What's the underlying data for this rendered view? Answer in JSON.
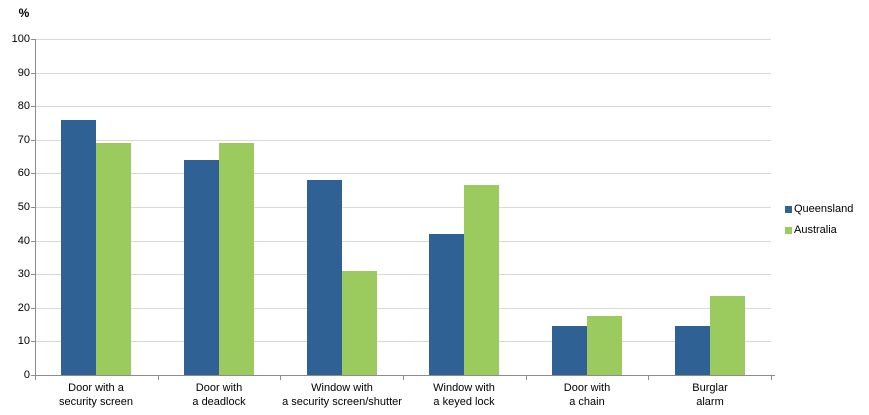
{
  "chart": {
    "unit_label": "%"
  },
  "chart_data": {
    "type": "bar",
    "title": "",
    "categories": [
      "Door with a security screen",
      "Door with a deadlock",
      "Window with a security screen/shutter",
      "Window with a keyed lock",
      "Door with a chain",
      "Burglar alarm"
    ],
    "category_lines": [
      [
        "Door with a",
        "security screen"
      ],
      [
        "Door with",
        "a deadlock"
      ],
      [
        "Window with",
        "a security screen/shutter"
      ],
      [
        "Window with",
        "a keyed lock"
      ],
      [
        "Door with",
        "a chain"
      ],
      [
        "Burglar",
        "alarm"
      ]
    ],
    "series": [
      {
        "name": "Queensland",
        "color": "#2f6195",
        "values": [
          76,
          64,
          58,
          42,
          14.5,
          14.5
        ]
      },
      {
        "name": "Australia",
        "color": "#9bca5e",
        "values": [
          69,
          69,
          31,
          56.5,
          17.5,
          23.5
        ]
      }
    ],
    "xlabel": "",
    "ylabel": "%",
    "ylim": [
      0,
      100
    ],
    "ytick_step": 10,
    "grid": true,
    "legend_position": "right",
    "colors": {
      "gridline": "#d9d9d9",
      "axis": "#8c8c8c",
      "text": "#000000",
      "background": "#ffffff"
    }
  }
}
